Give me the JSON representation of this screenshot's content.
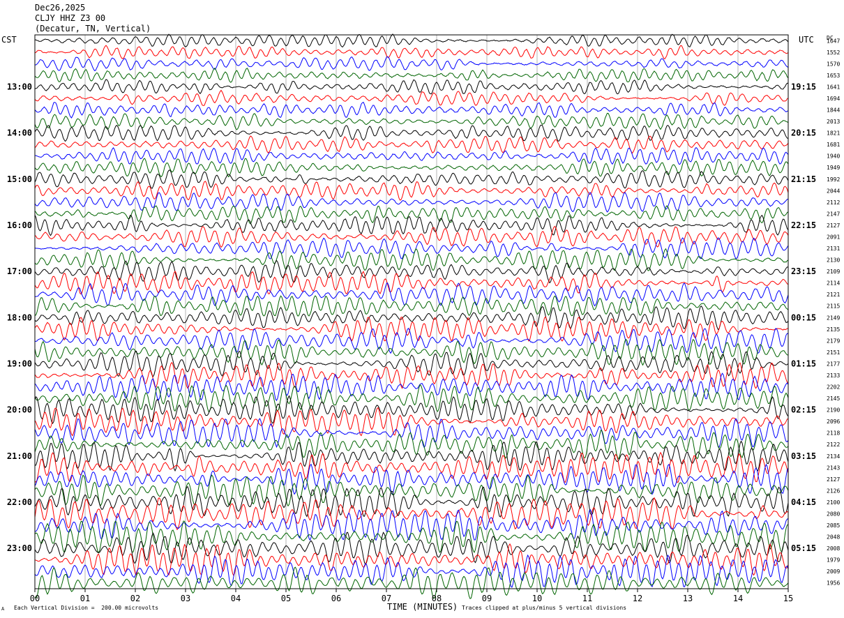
{
  "header": {
    "date": "Dec26,2025",
    "station": "CLJY HHZ Z3 00",
    "location": "(Decatur, TN, Vertical)"
  },
  "left_zone_label": "CST",
  "right_zone_label": "UTC",
  "dc_label": "DC",
  "footer": {
    "scale_note": "Each Vertical Division =  200.00 microvolts",
    "clip_note": "Traces clipped at plus/minus 5 vertical divisions",
    "corner_mark": "A"
  },
  "colors": {
    "trace_cycle": [
      "#000000",
      "#ff0000",
      "#0000ff",
      "#006400"
    ],
    "grid": "#b4b4b4",
    "frame": "#000000"
  },
  "chart_data": {
    "type": "line",
    "title": "CLJY HHZ Z3 00",
    "xlabel": "TIME (MINUTES)",
    "x_ticks": [
      "00",
      "01",
      "02",
      "03",
      "04",
      "05",
      "06",
      "07",
      "08",
      "09",
      "10",
      "11",
      "12",
      "13",
      "14",
      "15"
    ],
    "xlim": [
      0,
      15
    ],
    "rows_per_hour": 4,
    "left_hour_labels": [
      "13:00",
      "14:00",
      "15:00",
      "16:00",
      "17:00",
      "18:00",
      "19:00",
      "20:00",
      "21:00",
      "22:00",
      "23:00"
    ],
    "right_hour_labels": [
      "19:15",
      "20:15",
      "21:15",
      "22:15",
      "23:15",
      "00:15",
      "01:15",
      "02:15",
      "03:15",
      "04:15",
      "05:15"
    ],
    "first_labeled_row": 4,
    "dc_offsets": [
      1647,
      1552,
      1570,
      1653,
      1641,
      1694,
      1844,
      2013,
      1821,
      1681,
      1940,
      1949,
      1992,
      2044,
      2112,
      2147,
      2127,
      2091,
      2131,
      2130,
      2109,
      2114,
      2121,
      2115,
      2149,
      2135,
      2179,
      2151,
      2177,
      2133,
      2202,
      2145,
      2190,
      2096,
      2118,
      2122,
      2134,
      2143,
      2127,
      2126,
      2100,
      2080,
      2085,
      2048,
      2008,
      1979,
      2009,
      1956
    ]
  }
}
